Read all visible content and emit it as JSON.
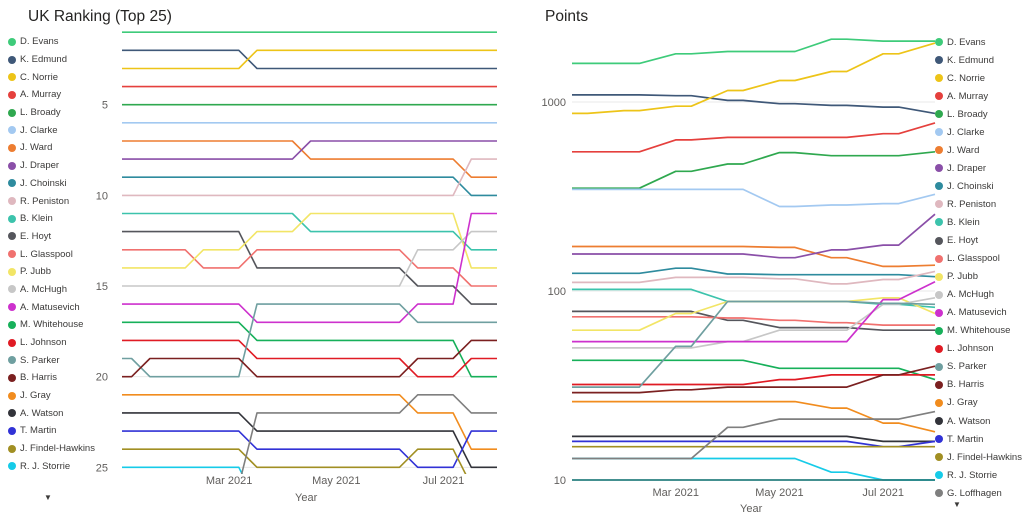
{
  "ui": {
    "legend_more_icon": "▼"
  },
  "chart_data": [
    {
      "type": "line",
      "subtype": "bump_ranking",
      "title": "UK Ranking (Top 25)",
      "xlabel": "Year",
      "x": [
        "Jan 2021",
        "Feb 2021",
        "Mar 2021",
        "Apr 2021",
        "May 2021",
        "Jun 2021",
        "Jul 2021",
        "Aug 2021"
      ],
      "x_ticks_shown": [
        "Mar 2021",
        "May 2021",
        "Jul 2021"
      ],
      "y_ticks_shown": [
        5,
        10,
        15,
        20,
        25
      ],
      "y_axis": "rank (1 = best, inverted axis)",
      "ylim": [
        1,
        25
      ],
      "grid": "horizontal-light",
      "legend_position": "left",
      "legend_visible_count": 25,
      "series": [
        {
          "name": "D. Evans",
          "color": "#3ecb7a",
          "values": [
            1,
            1,
            1,
            1,
            1,
            1,
            1,
            1
          ]
        },
        {
          "name": "K. Edmund",
          "color": "#3f5878",
          "values": [
            2,
            2,
            2,
            3,
            3,
            3,
            3,
            3
          ]
        },
        {
          "name": "C. Norrie",
          "color": "#edc418",
          "values": [
            3,
            3,
            3,
            2,
            2,
            2,
            2,
            2
          ]
        },
        {
          "name": "A. Murray",
          "color": "#e5403d",
          "values": [
            4,
            4,
            4,
            4,
            4,
            4,
            4,
            4
          ]
        },
        {
          "name": "L. Broady",
          "color": "#2fa84f",
          "values": [
            5,
            5,
            5,
            5,
            5,
            5,
            5,
            5
          ]
        },
        {
          "name": "J. Clarke",
          "color": "#a3c9f1",
          "values": [
            6,
            6,
            6,
            6,
            6,
            6,
            6,
            6
          ]
        },
        {
          "name": "J. Ward",
          "color": "#ed7d31",
          "values": [
            7,
            7,
            7,
            7,
            8,
            8,
            8,
            9
          ]
        },
        {
          "name": "J. Draper",
          "color": "#8a4fa8",
          "values": [
            8,
            8,
            8,
            8,
            7,
            7,
            7,
            7
          ]
        },
        {
          "name": "J. Choinski",
          "color": "#2e8b9e",
          "values": [
            9,
            9,
            9,
            9,
            9,
            9,
            9,
            10
          ]
        },
        {
          "name": "R. Peniston",
          "color": "#dfb8bf",
          "values": [
            10,
            10,
            10,
            10,
            10,
            10,
            10,
            8
          ]
        },
        {
          "name": "B. Klein",
          "color": "#3cc3ac",
          "values": [
            11,
            11,
            11,
            11,
            12,
            12,
            12,
            13
          ]
        },
        {
          "name": "E. Hoyt",
          "color": "#55565c",
          "values": [
            12,
            12,
            12,
            14,
            14,
            14,
            15,
            16
          ]
        },
        {
          "name": "L. Glasspool",
          "color": "#f0716f",
          "values": [
            13,
            13,
            14,
            13,
            13,
            13,
            14,
            15
          ]
        },
        {
          "name": "P. Jubb",
          "color": "#f2e566",
          "values": [
            14,
            14,
            13,
            12,
            11,
            11,
            11,
            14
          ]
        },
        {
          "name": "A. McHugh",
          "color": "#c7c7c7",
          "values": [
            15,
            15,
            15,
            15,
            15,
            15,
            13,
            12
          ]
        },
        {
          "name": "A. Matusevich",
          "color": "#cd31cd",
          "values": [
            16,
            16,
            16,
            17,
            17,
            17,
            16,
            11
          ]
        },
        {
          "name": "M. Whitehouse",
          "color": "#17b05a",
          "values": [
            17,
            17,
            17,
            18,
            18,
            18,
            18,
            20
          ]
        },
        {
          "name": "L. Johnson",
          "color": "#e01b24",
          "values": [
            18,
            18,
            18,
            19,
            19,
            19,
            20,
            19
          ]
        },
        {
          "name": "S. Parker",
          "color": "#6f9fa0",
          "values": [
            19,
            20,
            20,
            16,
            16,
            16,
            17,
            17
          ]
        },
        {
          "name": "B. Harris",
          "color": "#7b2020",
          "values": [
            20,
            19,
            19,
            20,
            20,
            20,
            19,
            18
          ]
        },
        {
          "name": "J. Gray",
          "color": "#f18c1e",
          "values": [
            21,
            21,
            21,
            21,
            21,
            21,
            22,
            24
          ]
        },
        {
          "name": "A. Watson",
          "color": "#32333a",
          "values": [
            22,
            22,
            22,
            23,
            23,
            23,
            23,
            25
          ]
        },
        {
          "name": "T. Martin",
          "color": "#3132d6",
          "values": [
            23,
            23,
            23,
            24,
            24,
            24,
            25,
            23
          ]
        },
        {
          "name": "J. Findel-Hawkins",
          "color": "#a18f23",
          "values": [
            24,
            24,
            24,
            25,
            25,
            25,
            24,
            26
          ]
        },
        {
          "name": "R. J. Storrie",
          "color": "#16cbe8",
          "values": [
            25,
            25,
            25,
            27,
            27,
            27,
            27,
            27
          ]
        },
        {
          "name": "G. Loffhagen",
          "color": "#7f7f7f",
          "values": [
            27,
            27,
            26,
            22,
            22,
            22,
            21,
            22
          ]
        }
      ]
    },
    {
      "type": "line",
      "title": "Points",
      "xlabel": "Year",
      "yscale": "log",
      "x": [
        "Jan 2021",
        "Feb 2021",
        "Mar 2021",
        "Apr 2021",
        "May 2021",
        "Jun 2021",
        "Jul 2021",
        "Aug 2021"
      ],
      "x_ticks_shown": [
        "Mar 2021",
        "May 2021",
        "Jul 2021"
      ],
      "y_ticks_shown": [
        10,
        100,
        1000
      ],
      "ylim": [
        10,
        2600
      ],
      "grid": "horizontal-light",
      "legend_position": "right",
      "legend_visible_count": 26,
      "series": [
        {
          "name": "D. Evans",
          "color": "#3ecb7a",
          "values": [
            1600,
            1600,
            1800,
            1850,
            1850,
            2150,
            2100,
            2100
          ]
        },
        {
          "name": "K. Edmund",
          "color": "#3f5878",
          "values": [
            1090,
            1090,
            1080,
            1020,
            980,
            960,
            940,
            870
          ]
        },
        {
          "name": "C. Norrie",
          "color": "#edc418",
          "values": [
            870,
            900,
            950,
            1150,
            1300,
            1450,
            1800,
            2050
          ]
        },
        {
          "name": "A. Murray",
          "color": "#e5403d",
          "values": [
            545,
            545,
            630,
            650,
            650,
            650,
            680,
            775
          ]
        },
        {
          "name": "L. Broady",
          "color": "#2fa84f",
          "values": [
            350,
            350,
            430,
            470,
            540,
            520,
            520,
            545
          ]
        },
        {
          "name": "J. Clarke",
          "color": "#a3c9f1",
          "values": [
            345,
            345,
            345,
            345,
            280,
            285,
            290,
            325
          ]
        },
        {
          "name": "J. Ward",
          "color": "#ed7d31",
          "values": [
            172,
            172,
            172,
            172,
            170,
            150,
            135,
            137
          ]
        },
        {
          "name": "J. Draper",
          "color": "#8a4fa8",
          "values": [
            157,
            157,
            157,
            157,
            150,
            165,
            175,
            255
          ]
        },
        {
          "name": "J. Choinski",
          "color": "#2e8b9e",
          "values": [
            124,
            124,
            132,
            123,
            122,
            122,
            122,
            119
          ]
        },
        {
          "name": "R. Peniston",
          "color": "#dfb8bf",
          "values": [
            111,
            111,
            118,
            118,
            116,
            109,
            115,
            127
          ]
        },
        {
          "name": "B. Klein",
          "color": "#3cc3ac",
          "values": [
            102,
            102,
            102,
            88,
            88,
            88,
            85,
            82
          ]
        },
        {
          "name": "E. Hoyt",
          "color": "#55565c",
          "values": [
            78,
            78,
            78,
            70,
            64,
            64,
            62,
            62
          ]
        },
        {
          "name": "L. Glasspool",
          "color": "#f0716f",
          "values": [
            73,
            73,
            73,
            72,
            70,
            68,
            66,
            66
          ]
        },
        {
          "name": "P. Jubb",
          "color": "#f2e566",
          "values": [
            62,
            62,
            76,
            88,
            88,
            88,
            92,
            76
          ]
        },
        {
          "name": "A. McHugh",
          "color": "#c7c7c7",
          "values": [
            50,
            50,
            50,
            54,
            62,
            62,
            85,
            92
          ]
        },
        {
          "name": "A. Matusevich",
          "color": "#cd31cd",
          "values": [
            54,
            54,
            54,
            54,
            54,
            54,
            90,
            112
          ]
        },
        {
          "name": "M. Whitehouse",
          "color": "#17b05a",
          "values": [
            43,
            43,
            43,
            43,
            39,
            39,
            39,
            34
          ]
        },
        {
          "name": "L. Johnson",
          "color": "#e01b24",
          "values": [
            32,
            32,
            32,
            32,
            34,
            36,
            36,
            36
          ]
        },
        {
          "name": "S. Parker",
          "color": "#6f9fa0",
          "values": [
            31,
            31,
            51,
            88,
            88,
            88,
            86,
            85
          ]
        },
        {
          "name": "B. Harris",
          "color": "#7b2020",
          "values": [
            29,
            29,
            30,
            31,
            31,
            31,
            36,
            40
          ]
        },
        {
          "name": "J. Gray",
          "color": "#f18c1e",
          "values": [
            26,
            26,
            26,
            26,
            26,
            24,
            20,
            18
          ]
        },
        {
          "name": "A. Watson",
          "color": "#32333a",
          "values": [
            17,
            17,
            17,
            17,
            17,
            17,
            16,
            16
          ]
        },
        {
          "name": "T. Martin",
          "color": "#3132d6",
          "values": [
            16,
            16,
            16,
            16,
            16,
            16,
            15,
            16
          ]
        },
        {
          "name": "J. Findel-Hawkins",
          "color": "#a18f23",
          "values": [
            15,
            15,
            15,
            15,
            15,
            15,
            15,
            15
          ]
        },
        {
          "name": "R. J. Storrie",
          "color": "#16cbe8",
          "values": [
            13,
            13,
            13,
            13,
            13,
            11,
            10,
            10
          ]
        },
        {
          "name": "G. Loffhagen",
          "color": "#7f7f7f",
          "values": [
            13,
            13,
            13,
            19,
            21,
            21,
            21,
            23
          ]
        },
        {
          "name": "",
          "color": "#2a8080",
          "values": [
            10,
            10,
            10,
            10,
            10,
            10,
            10,
            10
          ]
        }
      ]
    }
  ]
}
